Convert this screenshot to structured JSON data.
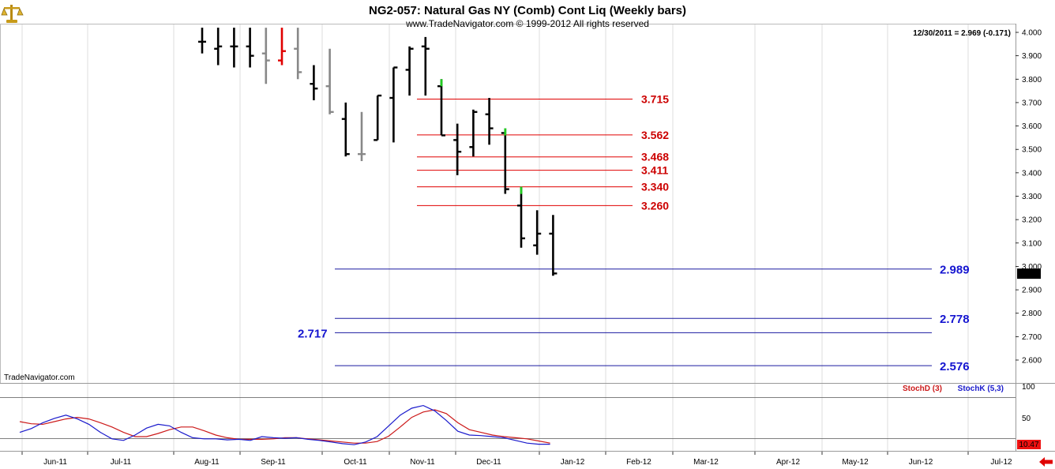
{
  "chart_data": {
    "type": "ohlc",
    "title": "NG2-057:  Natural Gas NY (Comb) Cont Liq  (Weekly bars)",
    "copyright": "www.TradeNavigator.com © 1999-2012 All rights reserved",
    "last_info": "12/30/2011 = 2.969 (-0.171)",
    "last_price_tag": "2.969",
    "brand": "TradeNavigator.com",
    "price_axis": {
      "min": 2.52,
      "max": 4.0,
      "ticks": [
        "4.000",
        "3.900",
        "3.800",
        "3.700",
        "3.600",
        "3.500",
        "3.400",
        "3.300",
        "3.200",
        "3.100",
        "3.000",
        "2.900",
        "2.800",
        "2.700",
        "2.600"
      ]
    },
    "x_labels": [
      "Jun-11",
      "Jul-11",
      "Aug-11",
      "Sep-11",
      "Oct-11",
      "Nov-11",
      "Dec-11",
      "Jan-12",
      "Feb-12",
      "Mar-12",
      "Apr-12",
      "May-12",
      "Jun-12",
      "Jul-12"
    ],
    "bars": [
      {
        "h": 4.02,
        "l": 3.91,
        "o": 3.96,
        "c": 3.96,
        "color": "#000000"
      },
      {
        "h": 4.02,
        "l": 3.86,
        "o": 3.93,
        "c": 3.94,
        "color": "#000000"
      },
      {
        "h": 4.02,
        "l": 3.85,
        "o": 3.94,
        "c": 3.94,
        "color": "#000000"
      },
      {
        "h": 4.02,
        "l": 3.85,
        "o": 3.94,
        "c": 3.9,
        "color": "#000000"
      },
      {
        "h": 4.02,
        "l": 3.78,
        "o": 3.91,
        "c": 3.88,
        "color": "#888888"
      },
      {
        "h": 4.02,
        "l": 3.86,
        "o": 3.88,
        "c": 3.92,
        "color": "#e00000"
      },
      {
        "h": 4.02,
        "l": 3.8,
        "o": 3.93,
        "c": 3.83,
        "color": "#888888"
      },
      {
        "h": 3.86,
        "l": 3.71,
        "o": 3.78,
        "c": 3.76,
        "color": "#000000"
      },
      {
        "h": 3.93,
        "l": 3.65,
        "o": 3.77,
        "c": 3.66,
        "color": "#888888"
      },
      {
        "h": 3.7,
        "l": 3.47,
        "o": 3.63,
        "c": 3.48,
        "color": "#000000"
      },
      {
        "h": 3.66,
        "l": 3.45,
        "o": 3.48,
        "c": 3.48,
        "color": "#888888"
      },
      {
        "h": 3.73,
        "l": 3.54,
        "o": 3.54,
        "c": 3.73,
        "color": "#000000"
      },
      {
        "h": 3.85,
        "l": 3.53,
        "o": 3.72,
        "c": 3.85,
        "color": "#000000"
      },
      {
        "h": 3.94,
        "l": 3.73,
        "o": 3.84,
        "c": 3.93,
        "color": "#000000"
      },
      {
        "h": 3.98,
        "l": 3.73,
        "o": 3.94,
        "c": 3.93,
        "color": "#000000"
      },
      {
        "h": 3.8,
        "l": 3.56,
        "o": 3.77,
        "c": 3.56,
        "color": "#000000",
        "hi_color": "#22cc22"
      },
      {
        "h": 3.61,
        "l": 3.39,
        "o": 3.54,
        "c": 3.49,
        "color": "#000000"
      },
      {
        "h": 3.67,
        "l": 3.47,
        "o": 3.51,
        "c": 3.66,
        "color": "#000000"
      },
      {
        "h": 3.72,
        "l": 3.52,
        "o": 3.65,
        "c": 3.59,
        "color": "#000000"
      },
      {
        "h": 3.59,
        "l": 3.31,
        "o": 3.57,
        "c": 3.33,
        "color": "#000000",
        "hi_color": "#22cc22"
      },
      {
        "h": 3.34,
        "l": 3.08,
        "o": 3.26,
        "c": 3.12,
        "color": "#000000",
        "hi_color": "#22cc22"
      },
      {
        "h": 3.24,
        "l": 3.05,
        "o": 3.09,
        "c": 3.14,
        "color": "#000000"
      },
      {
        "h": 3.22,
        "l": 2.96,
        "o": 3.14,
        "c": 2.97,
        "color": "#000000"
      }
    ],
    "levels_red": [
      {
        "label": "3.715",
        "value": 3.715
      },
      {
        "label": "3.562",
        "value": 3.562
      },
      {
        "label": "3.468",
        "value": 3.468
      },
      {
        "label": "3.411",
        "value": 3.411
      },
      {
        "label": "3.340",
        "value": 3.34
      },
      {
        "label": "3.260",
        "value": 3.26
      }
    ],
    "levels_blue": [
      {
        "label": "2.989",
        "value": 2.989,
        "side": "right"
      },
      {
        "label": "2.778",
        "value": 2.778,
        "side": "right"
      },
      {
        "label": "2.717",
        "value": 2.717,
        "side": "left"
      },
      {
        "label": "2.576",
        "value": 2.576,
        "side": "right"
      }
    ],
    "stoch": {
      "d_label": "StochD (3)",
      "k_label": "StochK (5,3)",
      "axis_ticks": [
        "100",
        "50"
      ],
      "last_value": "10.47",
      "k_values": [
        30,
        37,
        48,
        56,
        62,
        55,
        45,
        30,
        18,
        15,
        25,
        38,
        45,
        42,
        30,
        20,
        18,
        18,
        16,
        17,
        15,
        22,
        20,
        19,
        20,
        17,
        15,
        12,
        9,
        7,
        12,
        22,
        42,
        62,
        75,
        80,
        70,
        52,
        32,
        25,
        24,
        22,
        20,
        15,
        10,
        8,
        8
      ],
      "d_values": [
        50,
        46,
        45,
        50,
        55,
        58,
        55,
        48,
        40,
        30,
        22,
        22,
        28,
        35,
        40,
        40,
        33,
        25,
        20,
        17,
        17,
        17,
        18,
        20,
        20,
        18,
        16,
        14,
        12,
        10,
        10,
        13,
        23,
        40,
        58,
        68,
        72,
        65,
        48,
        35,
        30,
        25,
        22,
        20,
        18,
        14,
        10
      ]
    },
    "colors": {
      "red_level": "#e00000",
      "red_text": "#cc0000",
      "blue_level": "#1a1aa0",
      "blue_text": "#1515d0",
      "stoch_k": "#1a1acc",
      "stoch_d": "#cc1a1a"
    }
  }
}
